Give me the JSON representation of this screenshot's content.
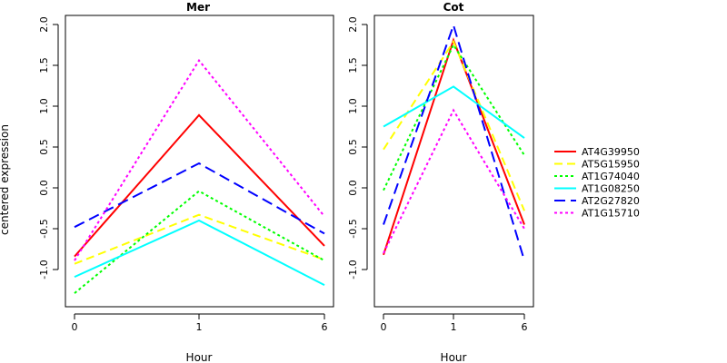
{
  "chart_data": {
    "type": "line",
    "shared": {
      "xlabel": "Hour",
      "ylabel": "centered expression",
      "x": [
        "0",
        "1",
        "6"
      ],
      "ylim": [
        -1.4,
        2.1
      ],
      "yticks": [
        "-1.0",
        "-0.5",
        "0.0",
        "0.5",
        "1.0",
        "1.5",
        "2.0"
      ],
      "grid": false,
      "legend_position": "right"
    },
    "legend": [
      {
        "name": "AT4G39950",
        "color": "#ff0000",
        "dash": "solid"
      },
      {
        "name": "AT5G15950",
        "color": "#ffff00",
        "dash": "dashed"
      },
      {
        "name": "AT1G74040",
        "color": "#00ff00",
        "dash": "dotted"
      },
      {
        "name": "AT1G08250",
        "color": "#00ffff",
        "dash": "solid"
      },
      {
        "name": "AT2G27820",
        "color": "#0000ff",
        "dash": "longdash"
      },
      {
        "name": "AT1G15710",
        "color": "#ff00ff",
        "dash": "dotted"
      }
    ],
    "panels": [
      {
        "title": "Mer",
        "series": [
          {
            "name": "AT4G39950",
            "values": [
              -0.84,
              0.89,
              -0.71
            ]
          },
          {
            "name": "AT5G15950",
            "values": [
              -0.93,
              -0.33,
              -0.88
            ]
          },
          {
            "name": "AT1G74040",
            "values": [
              -1.29,
              -0.04,
              -0.89
            ]
          },
          {
            "name": "AT1G08250",
            "values": [
              -1.09,
              -0.4,
              -1.19
            ]
          },
          {
            "name": "AT2G27820",
            "values": [
              -0.48,
              0.3,
              -0.56
            ]
          },
          {
            "name": "AT1G15710",
            "values": [
              -0.89,
              1.56,
              -0.35
            ]
          }
        ]
      },
      {
        "title": "Cot",
        "series": [
          {
            "name": "AT4G39950",
            "values": [
              -0.82,
              1.81,
              -0.45
            ]
          },
          {
            "name": "AT5G15950",
            "values": [
              0.47,
              1.79,
              -0.28
            ]
          },
          {
            "name": "AT1G74040",
            "values": [
              -0.03,
              1.75,
              0.4
            ]
          },
          {
            "name": "AT1G08250",
            "values": [
              0.75,
              1.24,
              0.61
            ]
          },
          {
            "name": "AT2G27820",
            "values": [
              -0.45,
              1.99,
              -0.89
            ]
          },
          {
            "name": "AT1G15710",
            "values": [
              -0.8,
              0.95,
              -0.5
            ]
          }
        ]
      }
    ]
  }
}
